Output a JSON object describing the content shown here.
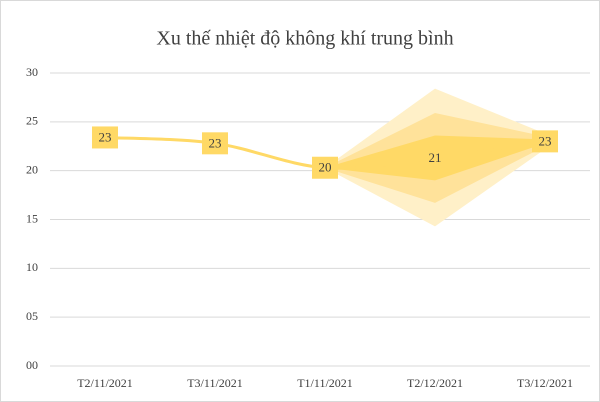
{
  "chart_data": {
    "type": "line",
    "title": "Xu thế nhiệt độ không khí trung bình",
    "categories": [
      "T2/11/2021",
      "T3/11/2021",
      "T1/11/2021",
      "T2/12/2021",
      "T3/12/2021"
    ],
    "series": [
      {
        "name": "Nhiệt độ",
        "color": "#ffd966",
        "values": [
          23.4,
          22.8,
          20.3,
          21.3,
          23.0
        ],
        "value_labels": [
          "23",
          "23",
          "20",
          "21",
          "23"
        ]
      }
    ],
    "bands": [
      {
        "color": "#fff0c8",
        "upper": [
          null,
          null,
          20.3,
          28.4,
          23.8
        ],
        "lower": [
          null,
          null,
          20.3,
          14.3,
          22.2
        ]
      },
      {
        "color": "#ffe29a",
        "upper": [
          null,
          null,
          20.3,
          25.9,
          23.5
        ],
        "lower": [
          null,
          null,
          20.3,
          16.7,
          22.5
        ]
      },
      {
        "color": "#ffd966",
        "upper": [
          null,
          null,
          20.3,
          23.6,
          23.2
        ],
        "lower": [
          null,
          null,
          20.3,
          19.0,
          22.8
        ]
      }
    ],
    "ylim": [
      0,
      30
    ],
    "yticks": [
      {
        "value": 0,
        "label": "00"
      },
      {
        "value": 5,
        "label": "05"
      },
      10,
      15,
      20,
      25,
      30
    ],
    "grid": true
  }
}
